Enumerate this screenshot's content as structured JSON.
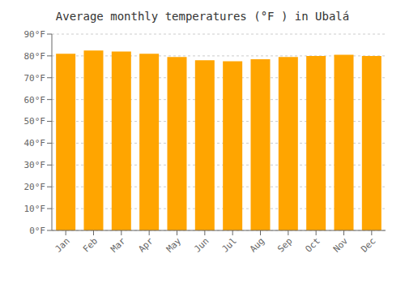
{
  "chart_data": {
    "type": "bar",
    "title": "Average monthly temperatures (°F ) in Ubalá",
    "categories": [
      "Jan",
      "Feb",
      "Mar",
      "Apr",
      "May",
      "Jun",
      "Jul",
      "Aug",
      "Sep",
      "Oct",
      "Nov",
      "Dec"
    ],
    "values": [
      81,
      82.5,
      82,
      81,
      79.5,
      78,
      77.5,
      78.5,
      79.5,
      80,
      80.5,
      80
    ],
    "color": "#FFA500",
    "ylim": [
      0,
      90
    ],
    "yticks": [
      {
        "value": 0,
        "label": "0°F"
      },
      {
        "value": 10,
        "label": "10°F"
      },
      {
        "value": 20,
        "label": "20°F"
      },
      {
        "value": 30,
        "label": "30°F"
      },
      {
        "value": 40,
        "label": "40°F"
      },
      {
        "value": 50,
        "label": "50°F"
      },
      {
        "value": 60,
        "label": "60°F"
      },
      {
        "value": 70,
        "label": "70°F"
      },
      {
        "value": 80,
        "label": "80°F"
      },
      {
        "value": 90,
        "label": "90°F"
      }
    ],
    "grid": true
  }
}
